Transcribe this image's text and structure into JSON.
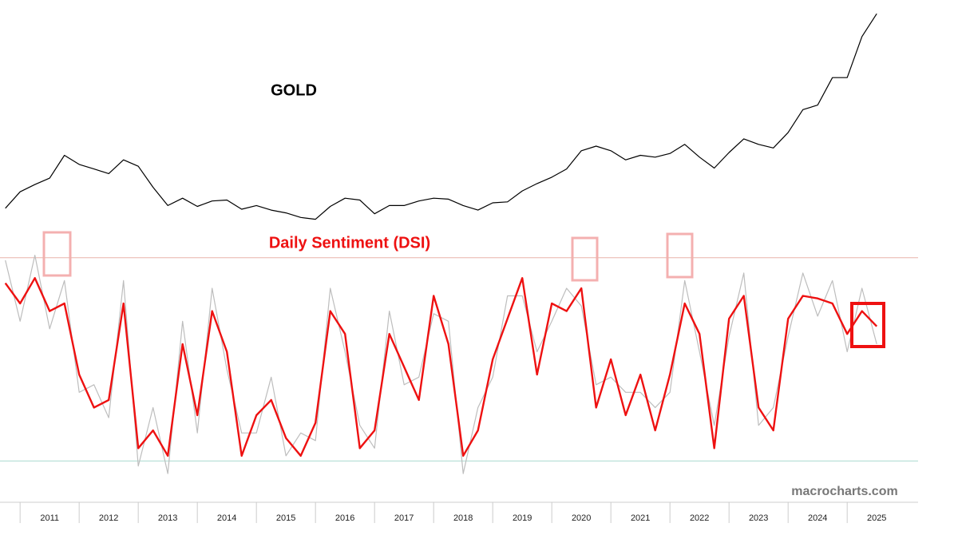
{
  "chart_data": [
    {
      "type": "line",
      "title": "GOLD",
      "color": "#000000",
      "xlim": [
        2010.66,
        2026.2
      ],
      "ylim": [
        1000,
        3500
      ],
      "x": [
        2010.75,
        2011,
        2011.25,
        2011.5,
        2011.75,
        2012,
        2012.25,
        2012.5,
        2012.75,
        2013,
        2013.25,
        2013.5,
        2013.75,
        2014,
        2014.25,
        2014.5,
        2014.75,
        2015,
        2015.25,
        2015.5,
        2015.75,
        2016,
        2016.25,
        2016.5,
        2016.75,
        2017,
        2017.25,
        2017.5,
        2017.75,
        2018,
        2018.25,
        2018.5,
        2018.75,
        2019,
        2019.25,
        2019.5,
        2019.75,
        2020,
        2020.25,
        2020.5,
        2020.75,
        2021,
        2021.25,
        2021.5,
        2021.75,
        2022,
        2022.25,
        2022.5,
        2022.75,
        2023,
        2023.25,
        2023.5,
        2023.75,
        2024,
        2024.25,
        2024.5,
        2024.75,
        2025,
        2025.25,
        2025.5
      ],
      "values": [
        1220,
        1400,
        1480,
        1550,
        1800,
        1700,
        1650,
        1600,
        1750,
        1680,
        1450,
        1250,
        1330,
        1240,
        1300,
        1310,
        1210,
        1250,
        1200,
        1170,
        1120,
        1100,
        1240,
        1330,
        1310,
        1160,
        1250,
        1250,
        1300,
        1330,
        1320,
        1250,
        1200,
        1280,
        1290,
        1410,
        1490,
        1560,
        1650,
        1850,
        1900,
        1850,
        1750,
        1800,
        1780,
        1820,
        1920,
        1780,
        1660,
        1830,
        1980,
        1920,
        1880,
        2050,
        2300,
        2350,
        2650,
        2650,
        3100,
        3350
      ]
    },
    {
      "type": "line",
      "title": "Daily Sentiment (DSI)",
      "xlim": [
        2010.66,
        2026.2
      ],
      "ylim": [
        0,
        100
      ],
      "reference_lines": [
        90,
        10
      ],
      "xticks": [
        2011,
        2012,
        2013,
        2014,
        2015,
        2016,
        2017,
        2018,
        2019,
        2020,
        2021,
        2022,
        2023,
        2024,
        2025
      ],
      "x": [
        2010.75,
        2011,
        2011.25,
        2011.5,
        2011.75,
        2012,
        2012.25,
        2012.5,
        2012.75,
        2013,
        2013.25,
        2013.5,
        2013.75,
        2014,
        2014.25,
        2014.5,
        2014.75,
        2015,
        2015.25,
        2015.5,
        2015.75,
        2016,
        2016.25,
        2016.5,
        2016.75,
        2017,
        2017.25,
        2017.5,
        2017.75,
        2018,
        2018.25,
        2018.5,
        2018.75,
        2019,
        2019.25,
        2019.5,
        2019.75,
        2020,
        2020.25,
        2020.5,
        2020.75,
        2021,
        2021.25,
        2021.5,
        2021.75,
        2022,
        2022.25,
        2022.5,
        2022.75,
        2023,
        2023.25,
        2023.5,
        2023.75,
        2024,
        2024.25,
        2024.5,
        2024.75,
        2025,
        2025.25,
        2025.5
      ],
      "series": [
        {
          "color": "#bdbdbd",
          "values": [
            89,
            65,
            91,
            62,
            81,
            37,
            40,
            27,
            81,
            8,
            31,
            5,
            65,
            21,
            78,
            46,
            21,
            21,
            43,
            12,
            21,
            18,
            78,
            53,
            24,
            15,
            69,
            40,
            43,
            68,
            65,
            5,
            31,
            43,
            75,
            75,
            53,
            65,
            78,
            71,
            40,
            43,
            37,
            37,
            31,
            37,
            81,
            53,
            24,
            59,
            84,
            24,
            31,
            59,
            84,
            67,
            81,
            53,
            78,
            56
          ]
        },
        {
          "color": "#ee1111",
          "values": [
            80,
            72,
            82,
            69,
            72,
            44,
            31,
            34,
            72,
            15,
            22,
            12,
            56,
            28,
            69,
            53,
            12,
            28,
            34,
            19,
            12,
            25,
            69,
            60,
            15,
            22,
            60,
            47,
            34,
            75,
            56,
            12,
            22,
            50,
            66,
            82,
            44,
            72,
            69,
            78,
            31,
            50,
            28,
            44,
            22,
            44,
            72,
            60,
            15,
            66,
            75,
            31,
            22,
            66,
            75,
            74,
            72,
            60,
            69,
            63
          ]
        }
      ]
    }
  ],
  "watermark": "macrocharts.com"
}
